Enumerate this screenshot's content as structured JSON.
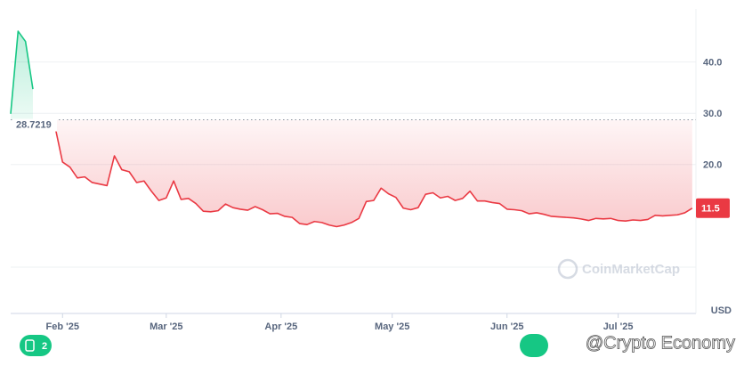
{
  "chart_data": {
    "type": "line",
    "baseline": 28.7219,
    "baseline_label": "28.7219",
    "current": 11.5,
    "current_label": "11.5",
    "unit": "USD",
    "watermark": "CoinMarketCap",
    "credit": "@Crypto Economy",
    "news_count": "2",
    "up_color": "#16c784",
    "down_color": "#ea3943",
    "xlim": [
      0,
      92.5
    ],
    "xticks": [
      {
        "value": 7,
        "label": "Feb '25"
      },
      {
        "value": 21,
        "label": "Mar '25"
      },
      {
        "value": 36.5,
        "label": "Apr '25"
      },
      {
        "value": 51.5,
        "label": "May '25"
      },
      {
        "value": 67,
        "label": "Jun '25"
      },
      {
        "value": 82,
        "label": "Jul '25"
      }
    ],
    "ylim": [
      0,
      50
    ],
    "yticks": [
      {
        "value": 20,
        "label": "20.0"
      },
      {
        "value": 30,
        "label": "30.0"
      },
      {
        "value": 40,
        "label": "40.0"
      }
    ],
    "grid": true,
    "values": [
      29.9,
      46,
      44,
      34.7,
      null,
      null,
      27.3,
      20.5,
      19.5,
      17.4,
      17.6,
      16.5,
      16.2,
      15.9,
      21.7,
      19,
      18.6,
      16.5,
      16.8,
      14.8,
      13,
      13.5,
      16.8,
      13.2,
      13.4,
      12.4,
      10.9,
      10.8,
      11.0,
      12.3,
      11.6,
      11.3,
      11.1,
      11.8,
      11.2,
      10.4,
      10.5,
      9.9,
      9.7,
      8.5,
      8.3,
      8.9,
      8.7,
      8.2,
      7.9,
      8.2,
      8.7,
      9.5,
      12.8,
      13,
      15.4,
      14.3,
      13.6,
      11.5,
      11.2,
      11.6,
      14.2,
      14.5,
      13.5,
      13.8,
      13,
      13.4,
      14.8,
      12.9,
      12.9,
      12.6,
      12.4,
      11.3,
      11.2,
      11.0,
      10.4,
      10.6,
      10.3,
      9.9,
      9.8,
      9.7,
      9.6,
      9.4,
      9.1,
      9.5,
      9.4,
      9.5,
      9.1,
      9.0,
      9.2,
      9.1,
      9.3,
      10.1,
      10.0,
      10.1,
      10.2,
      10.6,
      11.5
    ]
  }
}
